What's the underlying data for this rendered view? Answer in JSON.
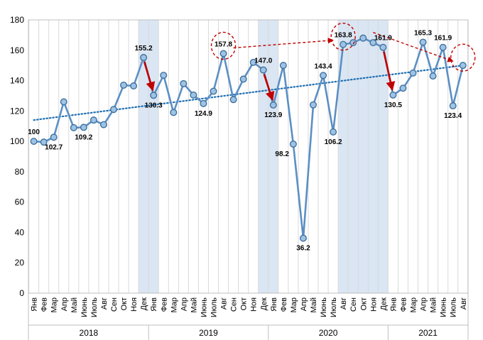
{
  "chart_data": {
    "type": "line",
    "title": "",
    "xlabel": "",
    "ylabel": "",
    "ylim": [
      0,
      180
    ],
    "yticks": [
      0,
      20,
      40,
      60,
      80,
      100,
      120,
      140,
      160,
      180
    ],
    "grid": "vertical gridlines",
    "legend": "none",
    "categories": [
      "Янв",
      "Фев",
      "Мар",
      "Апр",
      "Май",
      "Июнь",
      "Июль",
      "Авг",
      "Сен",
      "Окт",
      "Ноя",
      "Дек",
      "Янв",
      "Фев",
      "Мар",
      "Апр",
      "Май",
      "Июнь",
      "Июль",
      "Авг",
      "Сен",
      "Окт",
      "Ноя",
      "Дек",
      "Янв",
      "Фев",
      "Мар",
      "Апр",
      "Май",
      "Июнь",
      "Июль",
      "Авг",
      "Сен",
      "Окт",
      "Ноя",
      "Дек",
      "Янв",
      "Фев",
      "Мар",
      "Апр",
      "Май",
      "Июнь",
      "Июль",
      "Авг"
    ],
    "years": [
      {
        "label": "2018",
        "start": 0,
        "end": 11
      },
      {
        "label": "2019",
        "start": 12,
        "end": 23
      },
      {
        "label": "2020",
        "start": 24,
        "end": 35
      },
      {
        "label": "2021",
        "start": 36,
        "end": 43
      }
    ],
    "series": [
      {
        "values": [
          100,
          99.5,
          102.7,
          126,
          109,
          109.2,
          114,
          111,
          121,
          137,
          136.5,
          155.2,
          130.3,
          143.5,
          119,
          138,
          130.5,
          124.9,
          133,
          157.8,
          127.5,
          141,
          152,
          147.0,
          123.9,
          150,
          98.2,
          36.2,
          124,
          143.4,
          106.2,
          163.8,
          165,
          168,
          165,
          161.9,
          130.5,
          135,
          145,
          165.3,
          143,
          161.9,
          123.4,
          150
        ],
        "color": "#5b8fc4"
      }
    ],
    "trendline": {
      "start": 114,
      "end": 150,
      "color": "#1f6fb2",
      "style": "dotted"
    },
    "shaded_ranges": [
      [
        11,
        12
      ],
      [
        23,
        24
      ],
      [
        31,
        35
      ]
    ],
    "data_labels": [
      {
        "index": 0,
        "text": "100",
        "pos": "above"
      },
      {
        "index": 2,
        "text": "102.7",
        "pos": "below"
      },
      {
        "index": 5,
        "text": "109.2",
        "pos": "below"
      },
      {
        "index": 11,
        "text": "155.2",
        "pos": "above"
      },
      {
        "index": 12,
        "text": "130.3",
        "pos": "below"
      },
      {
        "index": 17,
        "text": "124.9",
        "pos": "below"
      },
      {
        "index": 19,
        "text": "157.8",
        "pos": "above"
      },
      {
        "index": 23,
        "text": "147.0",
        "pos": "above"
      },
      {
        "index": 24,
        "text": "123.9",
        "pos": "below"
      },
      {
        "index": 26,
        "text": "98.2",
        "pos": "left"
      },
      {
        "index": 27,
        "text": "36.2",
        "pos": "below"
      },
      {
        "index": 29,
        "text": "143.4",
        "pos": "above"
      },
      {
        "index": 30,
        "text": "106.2",
        "pos": "below"
      },
      {
        "index": 31,
        "text": "163.8",
        "pos": "above"
      },
      {
        "index": 35,
        "text": "161.9",
        "pos": "above"
      },
      {
        "index": 36,
        "text": "130.5",
        "pos": "below"
      },
      {
        "index": 39,
        "text": "165.3",
        "pos": "above"
      },
      {
        "index": 41,
        "text": "161.9",
        "pos": "above"
      },
      {
        "index": 42,
        "text": "123.4",
        "pos": "below"
      }
    ],
    "annotations": {
      "drop_arrows": [
        [
          11,
          12
        ],
        [
          23,
          24
        ],
        [
          35,
          36
        ]
      ],
      "drop_arrow_color": "#c00000",
      "highlight_circles": [
        19,
        31,
        43
      ],
      "dashed_arrows": [
        [
          19,
          31
        ],
        [
          33,
          43
        ]
      ],
      "annotation_color": "#c00000"
    }
  }
}
